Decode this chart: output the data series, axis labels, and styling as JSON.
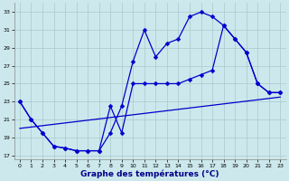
{
  "xlabel": "Graphe des températures (°C)",
  "xlim": [
    -0.5,
    23.5
  ],
  "ylim": [
    16.5,
    34
  ],
  "yticks": [
    17,
    19,
    21,
    23,
    25,
    27,
    29,
    31,
    33
  ],
  "xticks": [
    0,
    1,
    2,
    3,
    4,
    5,
    6,
    7,
    8,
    9,
    10,
    11,
    12,
    13,
    14,
    15,
    16,
    17,
    18,
    19,
    20,
    21,
    22,
    23
  ],
  "bg_color": "#cce8ec",
  "grid_color": "#aac8cc",
  "line_color": "#0000cc",
  "line1_x": [
    0,
    1,
    2,
    3,
    4,
    5,
    6,
    7,
    8,
    9,
    10,
    11,
    12,
    13,
    14,
    15,
    16,
    17,
    18,
    19,
    20,
    21,
    22,
    23
  ],
  "line1_y": [
    23,
    21,
    19.5,
    18,
    17.8,
    17.5,
    17.5,
    17.5,
    19.5,
    22.5,
    27.5,
    31,
    28,
    29.5,
    30,
    32.5,
    33,
    32.5,
    31.5,
    30,
    28.5,
    25,
    24,
    24
  ],
  "line2_x": [
    0,
    1,
    2,
    3,
    4,
    5,
    6,
    7,
    8,
    9,
    10,
    11,
    12,
    13,
    14,
    15,
    16,
    17,
    18,
    19,
    20,
    21,
    22,
    23
  ],
  "line2_y": [
    23,
    21,
    19.5,
    18,
    17.8,
    17.5,
    17.5,
    17.5,
    22.5,
    19.5,
    25,
    25,
    25,
    25,
    25,
    25.5,
    26,
    26.5,
    31.5,
    30,
    28.5,
    25,
    24,
    24
  ],
  "line3_x": [
    0,
    23
  ],
  "line3_y": [
    20.0,
    23.5
  ]
}
